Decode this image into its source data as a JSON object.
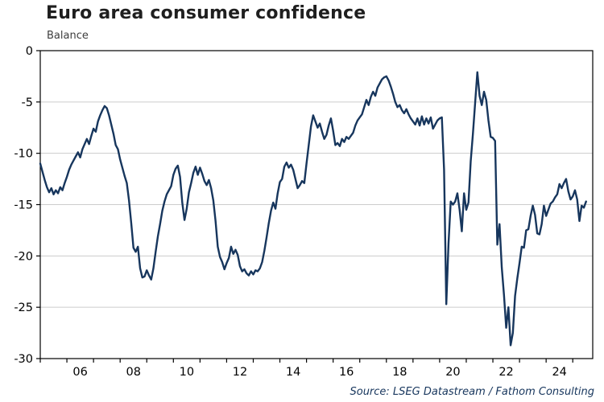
{
  "header": {
    "title": "Euro area consumer confidence",
    "ylabel": "Balance"
  },
  "footer": {
    "source": "Source: LSEG Datastream / Fathom Consulting"
  },
  "colors": {
    "line": "#17365d",
    "grid": "#cccccc",
    "frame": "#000000",
    "tick_text": "#000000",
    "title_text": "#1f1f1f",
    "source_text": "#17365d"
  },
  "chart_data": {
    "type": "line",
    "title": "Euro area consumer confidence",
    "ylabel": "Balance",
    "xlabel": "",
    "legend": "none",
    "grid": "horizontal",
    "ylim": [
      -30,
      0
    ],
    "y_ticks": [
      0,
      -5,
      -10,
      -15,
      -20,
      -25,
      -30
    ],
    "y_tick_labels": [
      "0",
      "-5",
      "-10",
      "-15",
      "-20",
      "-25",
      "-30"
    ],
    "x_axis": {
      "min": 2005.0,
      "max": 2025.75,
      "labeled_tick_years": [
        2006,
        2008,
        2010,
        2012,
        2014,
        2016,
        2018,
        2020,
        2022,
        2024
      ],
      "x_tick_labels": [
        "06",
        "08",
        "10",
        "12",
        "14",
        "16",
        "18",
        "20",
        "22",
        "24"
      ],
      "minor_tick_years": [
        2005,
        2006,
        2007,
        2008,
        2009,
        2010,
        2011,
        2012,
        2013,
        2014,
        2015,
        2016,
        2017,
        2018,
        2019,
        2020,
        2021,
        2022,
        2023,
        2024,
        2025
      ]
    },
    "series": [
      {
        "name": "Euro area consumer confidence (balance)",
        "frequency": "monthly",
        "start_year": 2005,
        "start_month": 1,
        "values": [
          -11.0,
          -11.8,
          -12.6,
          -13.3,
          -13.8,
          -13.4,
          -14.0,
          -13.6,
          -13.9,
          -13.3,
          -13.6,
          -12.9,
          -12.3,
          -11.6,
          -11.1,
          -10.7,
          -10.3,
          -9.9,
          -10.4,
          -9.6,
          -9.1,
          -8.6,
          -9.1,
          -8.3,
          -7.6,
          -7.9,
          -6.9,
          -6.3,
          -5.8,
          -5.4,
          -5.6,
          -6.3,
          -7.2,
          -8.1,
          -9.2,
          -9.6,
          -10.6,
          -11.4,
          -12.2,
          -12.9,
          -14.6,
          -16.8,
          -19.2,
          -19.6,
          -19.1,
          -21.2,
          -22.1,
          -22.0,
          -21.4,
          -21.9,
          -22.3,
          -21.2,
          -19.6,
          -18.1,
          -16.9,
          -15.6,
          -14.7,
          -14.0,
          -13.6,
          -13.2,
          -12.1,
          -11.5,
          -11.2,
          -12.3,
          -14.8,
          -16.5,
          -15.4,
          -13.8,
          -12.9,
          -11.9,
          -11.3,
          -12.1,
          -11.4,
          -12.0,
          -12.7,
          -13.1,
          -12.6,
          -13.4,
          -14.6,
          -16.6,
          -19.1,
          -20.1,
          -20.6,
          -21.3,
          -20.7,
          -20.2,
          -19.1,
          -19.8,
          -19.4,
          -19.9,
          -21.0,
          -21.5,
          -21.3,
          -21.7,
          -21.9,
          -21.5,
          -21.8,
          -21.4,
          -21.5,
          -21.2,
          -20.6,
          -19.5,
          -18.2,
          -16.8,
          -15.6,
          -14.8,
          -15.4,
          -13.9,
          -12.8,
          -12.5,
          -11.3,
          -10.9,
          -11.4,
          -11.1,
          -11.6,
          -12.5,
          -13.4,
          -13.1,
          -12.7,
          -12.9,
          -11.0,
          -9.2,
          -7.4,
          -6.3,
          -6.9,
          -7.5,
          -7.1,
          -7.9,
          -8.6,
          -8.2,
          -7.3,
          -6.6,
          -7.8,
          -9.2,
          -9.0,
          -9.3,
          -8.6,
          -8.9,
          -8.4,
          -8.6,
          -8.3,
          -8.0,
          -7.3,
          -6.8,
          -6.5,
          -6.2,
          -5.5,
          -4.8,
          -5.3,
          -4.5,
          -4.0,
          -4.4,
          -3.6,
          -3.2,
          -2.8,
          -2.6,
          -2.5,
          -2.9,
          -3.5,
          -4.2,
          -5.0,
          -5.5,
          -5.3,
          -5.8,
          -6.1,
          -5.7,
          -6.2,
          -6.6,
          -6.9,
          -7.2,
          -6.6,
          -7.3,
          -6.4,
          -7.2,
          -6.6,
          -7.1,
          -6.5,
          -7.6,
          -7.2,
          -6.8,
          -6.6,
          -6.5,
          -11.6,
          -24.7,
          -18.8,
          -14.7,
          -15.0,
          -14.7,
          -13.9,
          -15.5,
          -17.6,
          -13.9,
          -15.5,
          -14.8,
          -10.8,
          -8.1,
          -5.1,
          -2.1,
          -4.4,
          -5.3,
          -4.0,
          -4.8,
          -6.8,
          -8.4,
          -8.5,
          -8.8,
          -18.9,
          -16.9,
          -21.1,
          -23.8,
          -27.0,
          -25.0,
          -28.7,
          -27.5,
          -23.9,
          -22.2,
          -20.7,
          -19.1,
          -19.2,
          -17.5,
          -17.4,
          -16.1,
          -15.1,
          -16.0,
          -17.8,
          -17.9,
          -16.9,
          -15.1,
          -16.1,
          -15.5,
          -14.9,
          -14.7,
          -14.3,
          -14.0,
          -13.0,
          -13.4,
          -12.9,
          -12.5,
          -13.7,
          -14.5,
          -14.2,
          -13.6,
          -14.5,
          -16.6,
          -15.1,
          -15.3,
          -14.7
        ]
      }
    ]
  }
}
